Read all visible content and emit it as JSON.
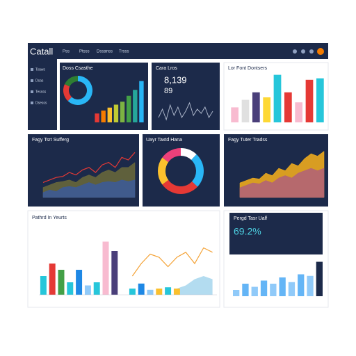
{
  "header": {
    "logo": "Catall",
    "nav": [
      "Pss",
      "Ptsss",
      "Dssanss",
      "Trsss"
    ]
  },
  "sidebar": {
    "items": [
      "Tsaws",
      "Dsas",
      "Tessss",
      "Dsesss"
    ]
  },
  "chart_data": [
    {
      "type": "pie",
      "title": "Doss Csasthe",
      "values": [
        62,
        20,
        18
      ],
      "colors": [
        "#29b6f6",
        "#e53935",
        "#2e7d32"
      ]
    },
    {
      "type": "bar",
      "values": [
        3,
        4,
        5,
        6,
        7,
        9,
        11,
        14
      ],
      "ylim": [
        0,
        16
      ],
      "colors": [
        "#e53935",
        "#f57c00",
        "#fbc02d",
        "#c0ca33",
        "#7cb342",
        "#43a047",
        "#26a69a",
        "#29b6f6"
      ]
    },
    {
      "type": "line",
      "title": "Cara Lros",
      "kpis": [
        "8,139",
        "89"
      ],
      "values": [
        3,
        7,
        2,
        9,
        4,
        8,
        3,
        6,
        10,
        4,
        7,
        5,
        8,
        3,
        6
      ],
      "ylim": [
        0,
        12
      ],
      "color": "#aab4c8"
    },
    {
      "type": "bar",
      "title": "Lor Font Dontsers",
      "values": [
        3,
        4.5,
        6,
        5,
        9.5,
        6,
        4,
        8.5,
        8.8
      ],
      "ylim": [
        0,
        10
      ],
      "colors": [
        "#f8bbd0",
        "#e0e0e0",
        "#4a3f7a",
        "#fdd835",
        "#26c6da",
        "#e53935",
        "#f8bbd0",
        "#e53935",
        "#26c6da"
      ]
    },
    {
      "type": "area",
      "title": "Fagy Tsrt Sufferg",
      "ylim": [
        0,
        10
      ],
      "series": [
        {
          "color": "#e53935",
          "style": "line",
          "values": [
            3,
            3.5,
            4,
            4.2,
            5,
            4.5,
            5.5,
            6,
            5,
            6.5,
            7,
            6,
            8,
            7.5,
            9
          ]
        },
        {
          "color": "#6b6a3a",
          "style": "area",
          "values": [
            2,
            2.5,
            3,
            3.2,
            3.5,
            3,
            4,
            4.5,
            4,
            5,
            5.5,
            5,
            6,
            6,
            7
          ]
        },
        {
          "color": "#3b5b9a",
          "style": "area",
          "values": [
            1,
            1.5,
            1.2,
            2,
            2.2,
            2,
            2.5,
            3,
            2.5,
            3,
            3.2,
            3,
            3.5,
            3.2,
            3.5
          ]
        }
      ]
    },
    {
      "type": "pie",
      "title": "Uayr Taxtd Hana",
      "values": [
        12,
        25,
        28,
        20,
        15
      ],
      "colors": [
        "#ffffff",
        "#29b6f6",
        "#e53935",
        "#fbc02d",
        "#ec407a"
      ]
    },
    {
      "type": "area",
      "title": "Fagy Tuter Tradss",
      "ylim": [
        0,
        10
      ],
      "series": [
        {
          "color": "#f9b21b",
          "style": "area",
          "values": [
            3,
            3.5,
            4,
            3.8,
            5,
            4.5,
            6,
            5.5,
            7,
            6.5,
            8,
            9,
            8.5,
            9.5
          ]
        },
        {
          "color": "#b0607a",
          "style": "area",
          "values": [
            2,
            2.5,
            3,
            2.8,
            3.5,
            3,
            4,
            4.5,
            4,
            5,
            5.5,
            6,
            5.5,
            6
          ]
        }
      ]
    },
    {
      "type": "combo",
      "title": "Pathrd In Yeurts",
      "ylim": [
        0,
        10
      ],
      "values": [
        3,
        5,
        4,
        2,
        4,
        1.5,
        2,
        8.5,
        7,
        null,
        1,
        1.8,
        0.8,
        1,
        1.2,
        1,
        null,
        null,
        null,
        null
      ],
      "colors": [
        "#26c6da",
        "#e53935",
        "#43a047",
        "#26c6da",
        "#1e88e5",
        "#90caf9",
        "#26c6da",
        "#f8bbd0",
        "#4a3f7a",
        "#26c6da",
        "#26c6da",
        "#1e88e5",
        "#90caf9",
        "#fbc02d",
        "#26c6da",
        "#fbc02d",
        "#26c6da",
        "#26c6da",
        "#26c6da",
        "#26c6da"
      ],
      "line": {
        "color": "#f4a235",
        "values": [
          null,
          null,
          null,
          null,
          null,
          null,
          null,
          null,
          null,
          null,
          3,
          5,
          6.5,
          6,
          4.5,
          6,
          6.8,
          5,
          7.5,
          6.8
        ]
      },
      "area": {
        "color": "#b3dcf0",
        "values": [
          null,
          null,
          null,
          null,
          null,
          null,
          null,
          null,
          null,
          null,
          null,
          null,
          null,
          null,
          null,
          1,
          1.5,
          2.5,
          3,
          2.5
        ]
      }
    },
    {
      "type": "bar",
      "title": "Pergd Tasr Ualf",
      "kpis": [
        "69.2%"
      ],
      "values": [
        2,
        4,
        3,
        5,
        4,
        6,
        4.5,
        7,
        6.5,
        11
      ],
      "ylim": [
        0,
        12
      ],
      "colors": [
        "#90caf9",
        "#64b5f6",
        "#90caf9",
        "#64b5f6",
        "#90caf9",
        "#64b5f6",
        "#90caf9",
        "#64b5f6",
        "#90caf9",
        "#1c2a4a"
      ]
    }
  ]
}
